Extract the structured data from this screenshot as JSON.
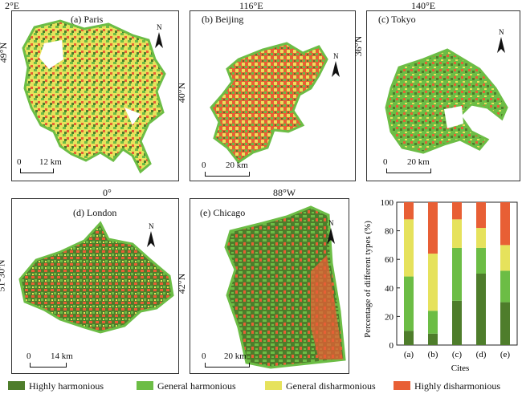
{
  "colors": {
    "highly_harmonious": "#4e7d2b",
    "general_harmonious": "#6cbd45",
    "general_disharmonious": "#e6e25c",
    "highly_disharmonious": "#e85f35"
  },
  "maps": {
    "paris": {
      "title": "(a) Paris",
      "lon": "2°E",
      "lat": "49°N",
      "scale_zero": "0",
      "scale_dist": "12 km"
    },
    "beijing": {
      "title": "(b) Beijing",
      "lon": "116°E",
      "lat": "40°N",
      "scale_zero": "0",
      "scale_dist": "20 km"
    },
    "tokyo": {
      "title": "(c) Tokyo",
      "lon": "140°E",
      "lat": "36°N",
      "scale_zero": "0",
      "scale_dist": "20 km"
    },
    "london": {
      "title": "(d) London",
      "lon": "0°",
      "lat": "51°30′N",
      "scale_zero": "0",
      "scale_dist": "14 km"
    },
    "chicago": {
      "title": "(e) Chicago",
      "lon": "88°W",
      "lat": "42°N",
      "scale_zero": "0",
      "scale_dist": "20 km"
    }
  },
  "north_label": "N",
  "chart_data": {
    "type": "bar",
    "stacked": true,
    "categories": [
      "(a)",
      "(b)",
      "(c)",
      "(d)",
      "(e)"
    ],
    "series": [
      {
        "name": "Highly harmonious",
        "color_key": "highly_harmonious",
        "values": [
          10,
          8,
          31,
          50,
          30
        ]
      },
      {
        "name": "General harmonious",
        "color_key": "general_harmonious",
        "values": [
          38,
          16,
          37,
          18,
          22
        ]
      },
      {
        "name": "General disharmonious",
        "color_key": "general_disharmonious",
        "values": [
          40,
          40,
          20,
          14,
          18
        ]
      },
      {
        "name": "Highly disharmonious",
        "color_key": "highly_disharmonious",
        "values": [
          12,
          36,
          12,
          18,
          30
        ]
      }
    ],
    "xlabel": "Cites",
    "ylabel": "Percentage of different types (%)",
    "ylim": [
      0,
      100
    ],
    "yticks": [
      0,
      20,
      40,
      60,
      80,
      100
    ],
    "grid": false,
    "legend": "bottom"
  },
  "legend": [
    {
      "label": "Highly harmonious",
      "color_key": "highly_harmonious"
    },
    {
      "label": "General harmonious",
      "color_key": "general_harmonious"
    },
    {
      "label": "General disharmonious",
      "color_key": "general_disharmonious"
    },
    {
      "label": "Highly disharmonious",
      "color_key": "highly_disharmonious"
    }
  ]
}
